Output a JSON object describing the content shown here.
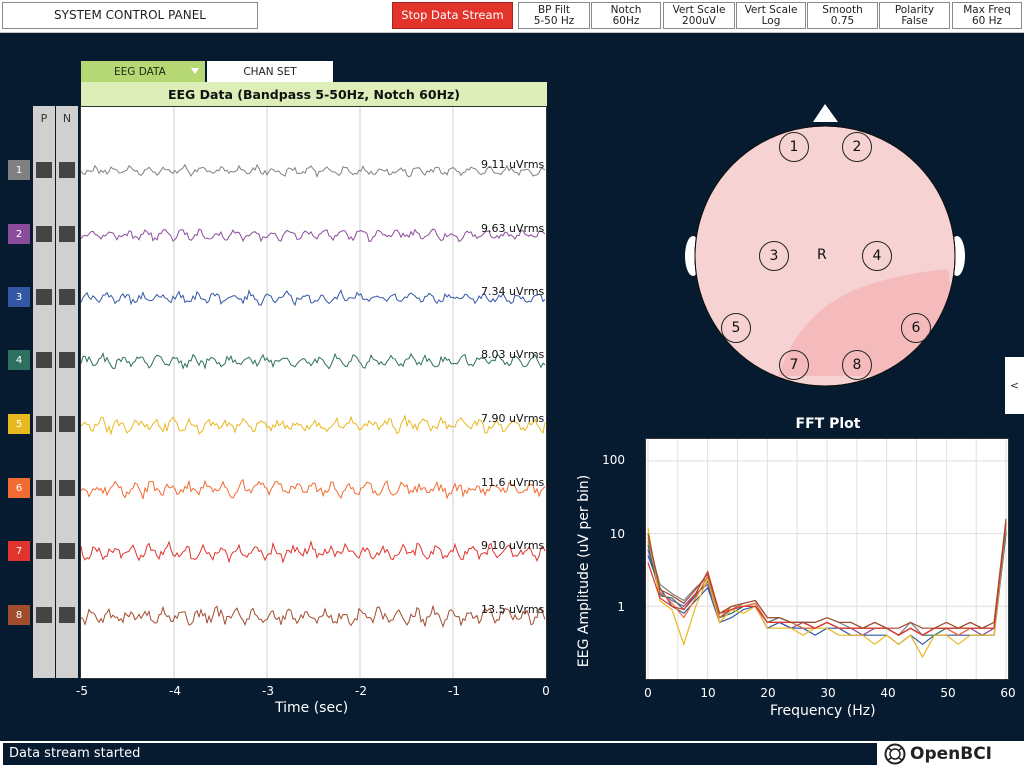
{
  "toolbar": {
    "system_label": "SYSTEM CONTROL PANEL",
    "stop_label": "Stop Data Stream",
    "settings": [
      {
        "line1": "BP Filt",
        "line2": "5-50 Hz"
      },
      {
        "line1": "Notch",
        "line2": "60Hz"
      },
      {
        "line1": "Vert Scale",
        "line2": "200uV"
      },
      {
        "line1": "Vert Scale",
        "line2": "Log"
      },
      {
        "line1": "Smooth",
        "line2": "0.75"
      },
      {
        "line1": "Polarity",
        "line2": "False"
      },
      {
        "line1": "Max Freq",
        "line2": "60 Hz"
      }
    ]
  },
  "tabs": {
    "eeg_data": "EEG DATA",
    "chan_set": "CHAN SET"
  },
  "eeg": {
    "title": "EEG Data (Bandpass 5-50Hz, Notch 60Hz)",
    "p_label": "P",
    "n_label": "N",
    "xlabel": "Time (sec)",
    "xticks": [
      "-5",
      "-4",
      "-3",
      "-2",
      "-1",
      "0"
    ],
    "channels": [
      {
        "num": "1",
        "rms": "9.11 uVrms",
        "color": "#808080"
      },
      {
        "num": "2",
        "rms": "9.63 uVrms",
        "color": "#8b4c9c"
      },
      {
        "num": "3",
        "rms": "7.34 uVrms",
        "color": "#3357a5"
      },
      {
        "num": "4",
        "rms": "8.03 uVrms",
        "color": "#2e7060"
      },
      {
        "num": "5",
        "rms": "7.90 uVrms",
        "color": "#e8b81f"
      },
      {
        "num": "6",
        "rms": "11.6 uVrms",
        "color": "#f26b32"
      },
      {
        "num": "7",
        "rms": "9.10 uVrms",
        "color": "#e0342d"
      },
      {
        "num": "8",
        "rms": "13.5 uVrms",
        "color": "#a04d2e"
      }
    ]
  },
  "head": {
    "electrodes": [
      "1",
      "2",
      "3",
      "4",
      "5",
      "6",
      "7",
      "8"
    ],
    "reference": "R"
  },
  "fft": {
    "title": "FFT Plot",
    "xlabel": "Frequency (Hz)",
    "ylabel": "EEG Amplitude (uV per bin)",
    "xticks": [
      "0",
      "10",
      "20",
      "30",
      "40",
      "50",
      "60"
    ],
    "yticks": [
      "100",
      "10",
      "1"
    ]
  },
  "side_tab": "<",
  "status": "Data stream started",
  "logo": "OpenBCI",
  "chart_data": {
    "type": "line",
    "title": "FFT Plot",
    "xlabel": "Frequency (Hz)",
    "ylabel": "EEG Amplitude (uV per bin)",
    "xlim": [
      0,
      60
    ],
    "ylim": [
      0.1,
      200
    ],
    "yscale": "log",
    "grid": true,
    "x": [
      0,
      2,
      4,
      6,
      8,
      10,
      12,
      14,
      16,
      18,
      20,
      22,
      24,
      26,
      28,
      30,
      32,
      34,
      36,
      38,
      40,
      42,
      44,
      46,
      48,
      50,
      52,
      54,
      56,
      58,
      60
    ],
    "series": [
      {
        "color": "#808080",
        "values": [
          8,
          2,
          1.5,
          1.2,
          1.8,
          2.5,
          0.8,
          0.9,
          1.1,
          1.2,
          0.7,
          0.7,
          0.6,
          0.6,
          0.6,
          0.7,
          0.6,
          0.5,
          0.5,
          0.6,
          0.5,
          0.4,
          0.6,
          0.4,
          0.5,
          0.5,
          0.5,
          0.6,
          0.5,
          0.6,
          14
        ]
      },
      {
        "color": "#8b4c9c",
        "values": [
          6,
          1.5,
          1.2,
          1.0,
          1.5,
          2.0,
          0.7,
          0.9,
          1.0,
          1.0,
          0.6,
          0.6,
          0.5,
          0.6,
          0.5,
          0.6,
          0.5,
          0.5,
          0.4,
          0.5,
          0.5,
          0.4,
          0.5,
          0.4,
          0.5,
          0.5,
          0.4,
          0.5,
          0.4,
          0.5,
          12
        ]
      },
      {
        "color": "#3357a5",
        "values": [
          5,
          1.8,
          1.0,
          0.8,
          1.2,
          1.8,
          0.6,
          0.7,
          0.9,
          1.0,
          0.5,
          0.6,
          0.5,
          0.5,
          0.4,
          0.5,
          0.5,
          0.4,
          0.4,
          0.4,
          0.4,
          0.3,
          0.4,
          0.3,
          0.4,
          0.4,
          0.4,
          0.4,
          0.4,
          0.4,
          10
        ]
      },
      {
        "color": "#2e7060",
        "values": [
          7,
          1.4,
          1.3,
          0.9,
          1.4,
          2.2,
          0.7,
          0.8,
          1.0,
          1.1,
          0.6,
          0.7,
          0.6,
          0.5,
          0.5,
          0.6,
          0.5,
          0.5,
          0.5,
          0.5,
          0.5,
          0.4,
          0.5,
          0.4,
          0.4,
          0.5,
          0.5,
          0.5,
          0.5,
          0.5,
          11
        ]
      },
      {
        "color": "#e8b81f",
        "values": [
          12,
          1.2,
          0.9,
          0.3,
          1.0,
          2.4,
          0.6,
          0.9,
          0.8,
          1.0,
          0.5,
          0.5,
          0.5,
          0.4,
          0.5,
          0.5,
          0.4,
          0.4,
          0.4,
          0.3,
          0.4,
          0.3,
          0.4,
          0.2,
          0.4,
          0.4,
          0.3,
          0.4,
          0.4,
          0.4,
          13
        ]
      },
      {
        "color": "#f26b32",
        "values": [
          9,
          1.6,
          1.1,
          0.7,
          1.3,
          2.6,
          0.7,
          1.0,
          1.0,
          1.1,
          0.6,
          0.6,
          0.6,
          0.5,
          0.5,
          0.6,
          0.5,
          0.5,
          0.5,
          0.5,
          0.5,
          0.4,
          0.5,
          0.4,
          0.5,
          0.5,
          0.4,
          0.5,
          0.5,
          0.5,
          15
        ]
      },
      {
        "color": "#e0342d",
        "values": [
          4,
          1.3,
          1.0,
          0.9,
          1.5,
          3.0,
          0.8,
          0.9,
          1.0,
          1.0,
          0.6,
          0.6,
          0.6,
          0.6,
          0.5,
          0.6,
          0.5,
          0.5,
          0.5,
          0.5,
          0.5,
          0.4,
          0.5,
          0.4,
          0.5,
          0.5,
          0.5,
          0.5,
          0.5,
          0.5,
          14
        ]
      },
      {
        "color": "#a04d2e",
        "values": [
          10,
          1.7,
          1.4,
          1.1,
          1.7,
          2.8,
          0.8,
          1.0,
          1.1,
          1.2,
          0.7,
          0.7,
          0.6,
          0.6,
          0.6,
          0.7,
          0.6,
          0.6,
          0.5,
          0.6,
          0.5,
          0.5,
          0.6,
          0.5,
          0.5,
          0.6,
          0.5,
          0.6,
          0.5,
          0.6,
          16
        ]
      }
    ]
  }
}
